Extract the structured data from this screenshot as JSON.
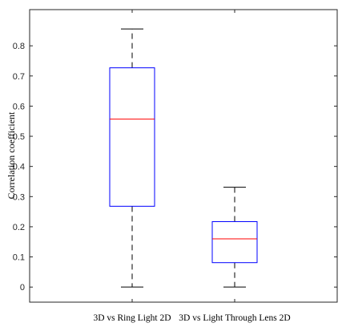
{
  "chart_data": {
    "type": "boxplot",
    "title": "",
    "xlabel": "",
    "ylabel": "Correlation coefficient",
    "ylim": [
      -0.05,
      0.92
    ],
    "yticks": [
      0,
      0.1,
      0.2,
      0.3,
      0.4,
      0.5,
      0.6,
      0.7,
      0.8
    ],
    "ytick_labels": [
      "0",
      "0.1",
      "0.2",
      "0.3",
      "0.4",
      "0.5",
      "0.6",
      "0.7",
      "0.8"
    ],
    "grid": false,
    "categories": [
      "3D vs Ring Light 2D",
      "3D vs Light Through Lens 2D"
    ],
    "boxes": [
      {
        "min": 0.0,
        "q1": 0.268,
        "median": 0.557,
        "q3": 0.727,
        "max": 0.856
      },
      {
        "min": 0.0,
        "q1": 0.081,
        "median": 0.16,
        "q3": 0.217,
        "max": 0.331
      }
    ],
    "colors": {
      "box": "#0000ff",
      "median": "#ff0000",
      "whisker": "#000000",
      "axis": "#262626"
    }
  }
}
